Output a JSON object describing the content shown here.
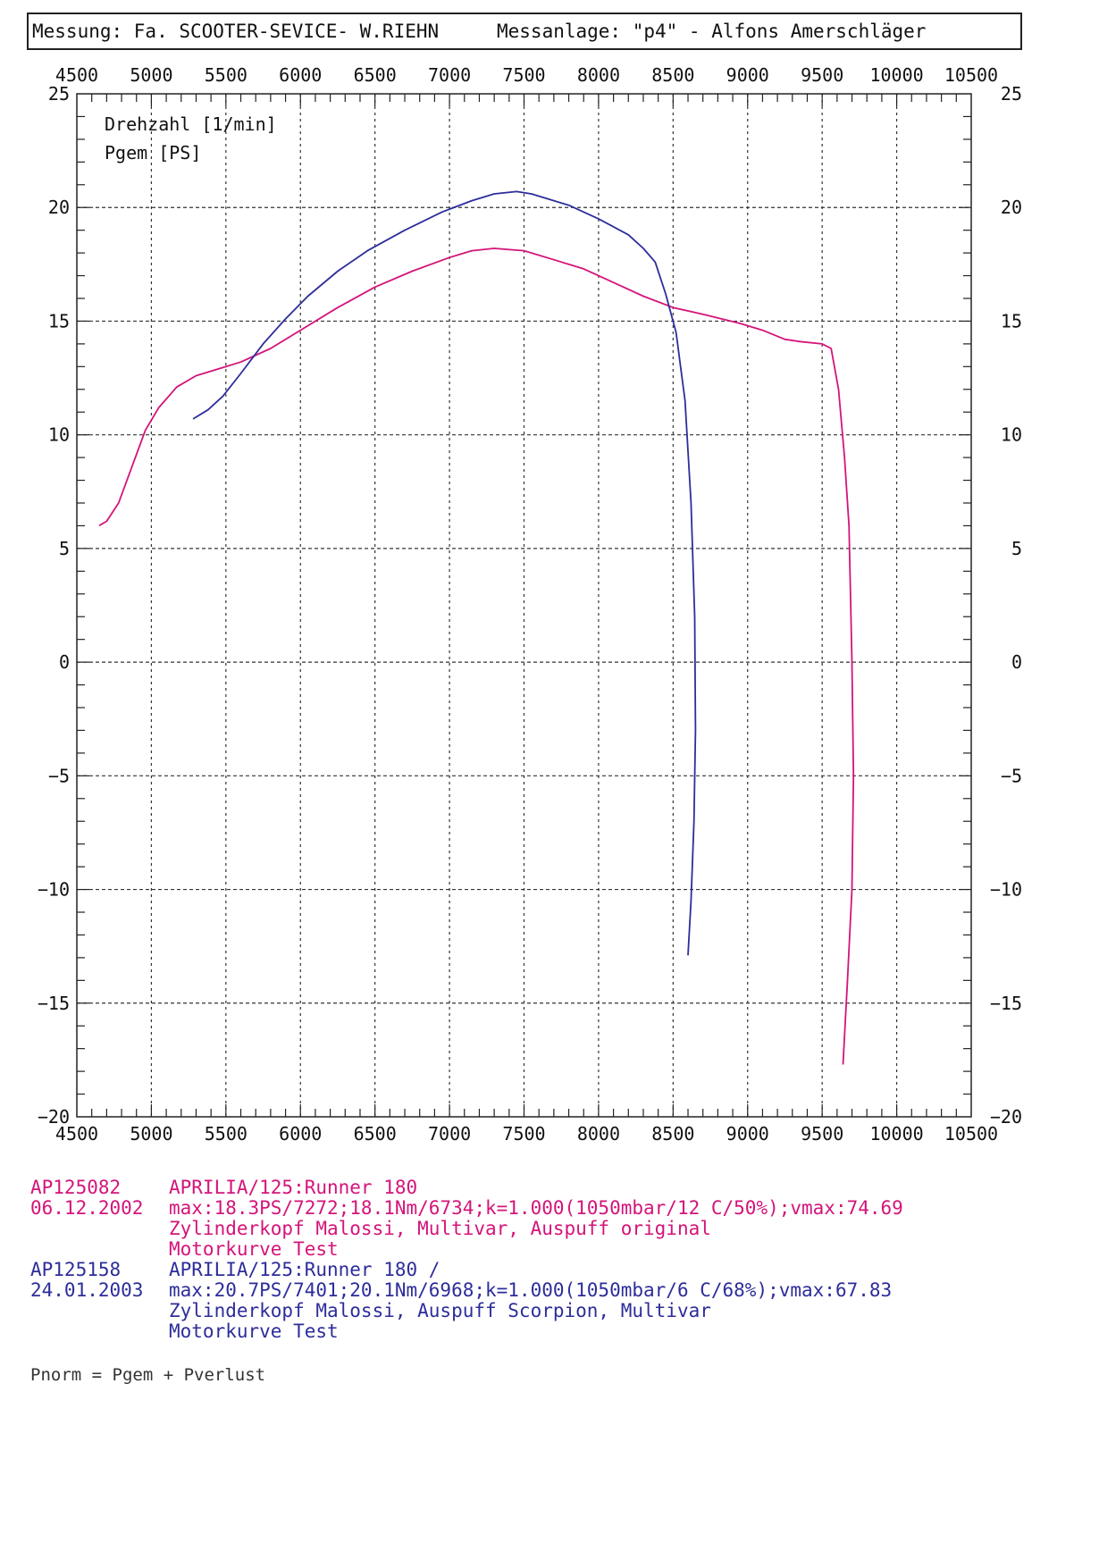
{
  "header": {
    "left": "Messung: Fa. SCOOTER-SEVICE- W.RIEHN",
    "right": "Messanlage: \"p4\" - Alfons Amerschläger"
  },
  "chart_data": {
    "type": "line",
    "xlim": [
      4500,
      10500
    ],
    "ylim": [
      -20,
      25
    ],
    "x_ticks": [
      4500,
      5000,
      5500,
      6000,
      6500,
      7000,
      7500,
      8000,
      8500,
      9000,
      9500,
      10000,
      10500
    ],
    "y_ticks": [
      25,
      20,
      15,
      10,
      5,
      0,
      -5,
      -10,
      -15,
      -20
    ],
    "y_tick_labels": [
      "25",
      "20",
      "15",
      "10",
      "5",
      "0",
      "−5",
      "−10",
      "−15",
      "−20"
    ],
    "axis_labels": [
      "Drehzahl [1/min]",
      "Pgem [PS]"
    ],
    "grid": true,
    "series": [
      {
        "color": "#d4147a",
        "points": [
          [
            4650,
            6.0
          ],
          [
            4700,
            6.2
          ],
          [
            4780,
            7.0
          ],
          [
            4870,
            8.6
          ],
          [
            4960,
            10.2
          ],
          [
            5050,
            11.2
          ],
          [
            5170,
            12.1
          ],
          [
            5300,
            12.6
          ],
          [
            5450,
            12.9
          ],
          [
            5600,
            13.2
          ],
          [
            5800,
            13.8
          ],
          [
            6000,
            14.6
          ],
          [
            6250,
            15.6
          ],
          [
            6500,
            16.5
          ],
          [
            6750,
            17.2
          ],
          [
            7000,
            17.8
          ],
          [
            7150,
            18.1
          ],
          [
            7300,
            18.2
          ],
          [
            7500,
            18.1
          ],
          [
            7700,
            17.7
          ],
          [
            7900,
            17.3
          ],
          [
            8100,
            16.7
          ],
          [
            8300,
            16.1
          ],
          [
            8500,
            15.6
          ],
          [
            8700,
            15.3
          ],
          [
            8950,
            14.9
          ],
          [
            9100,
            14.6
          ],
          [
            9250,
            14.2
          ],
          [
            9350,
            14.1
          ],
          [
            9500,
            14.0
          ],
          [
            9560,
            13.8
          ],
          [
            9610,
            12.0
          ],
          [
            9650,
            9.0
          ],
          [
            9680,
            6.0
          ],
          [
            9700,
            0.0
          ],
          [
            9710,
            -5.0
          ],
          [
            9700,
            -10.0
          ],
          [
            9670,
            -14.0
          ],
          [
            9640,
            -17.7
          ]
        ]
      },
      {
        "color": "#2d2d9a",
        "points": [
          [
            5280,
            10.7
          ],
          [
            5380,
            11.1
          ],
          [
            5480,
            11.7
          ],
          [
            5600,
            12.7
          ],
          [
            5750,
            14.0
          ],
          [
            5900,
            15.1
          ],
          [
            6050,
            16.1
          ],
          [
            6250,
            17.2
          ],
          [
            6450,
            18.1
          ],
          [
            6700,
            19.0
          ],
          [
            6950,
            19.8
          ],
          [
            7150,
            20.3
          ],
          [
            7300,
            20.6
          ],
          [
            7450,
            20.7
          ],
          [
            7550,
            20.6
          ],
          [
            7800,
            20.1
          ],
          [
            8000,
            19.5
          ],
          [
            8200,
            18.8
          ],
          [
            8300,
            18.2
          ],
          [
            8380,
            17.6
          ],
          [
            8450,
            16.2
          ],
          [
            8520,
            14.5
          ],
          [
            8580,
            11.5
          ],
          [
            8620,
            7.0
          ],
          [
            8645,
            2.0
          ],
          [
            8650,
            -3.0
          ],
          [
            8640,
            -7.0
          ],
          [
            8620,
            -10.5
          ],
          [
            8600,
            -12.9
          ]
        ]
      }
    ]
  },
  "legend": {
    "run1": {
      "id": "AP125082",
      "date": "06.12.2002",
      "line1": "APRILIA/125:Runner 180",
      "line2": "max:18.3PS/7272;18.1Nm/6734;k=1.000(1050mbar/12 C/50%);vmax:74.69",
      "line3": "Zylinderkopf Malossi, Multivar, Auspuff original",
      "line4": "Motorkurve Test"
    },
    "run2": {
      "id": "AP125158",
      "date": "24.01.2003",
      "line1": "APRILIA/125:Runner 180 /",
      "line2": "max:20.7PS/7401;20.1Nm/6968;k=1.000(1050mbar/6 C/68%);vmax:67.83",
      "line3": "Zylinderkopf Malossi, Auspuff Scorpion, Multivar",
      "line4": "Motorkurve Test"
    }
  },
  "footnote": "Pnorm = Pgem + Pverlust"
}
